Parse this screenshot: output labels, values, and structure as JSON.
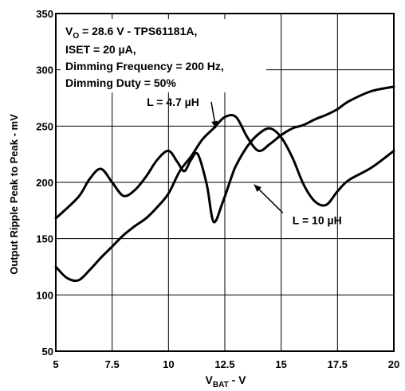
{
  "chart_data": {
    "type": "line",
    "xlabel": "V",
    "xlabel_sub": "BAT",
    "xlabel_unit": " - V",
    "ylabel": "Output Ripple Peak to Peak - mV",
    "xlim": [
      5,
      20
    ],
    "ylim": [
      50,
      350
    ],
    "xticks": [
      5,
      7.5,
      10,
      12.5,
      15,
      17.5,
      20
    ],
    "xtick_labels": [
      "5",
      "7.5",
      "10",
      "12.5",
      "15",
      "17.5",
      "20"
    ],
    "yticks": [
      50,
      100,
      150,
      200,
      250,
      300,
      350
    ],
    "ytick_labels": [
      "50",
      "100",
      "150",
      "200",
      "250",
      "300",
      "350"
    ],
    "grid": true,
    "annotation": {
      "line1_prefix": "V",
      "line1_sub": "O",
      "line1_rest": " = 28.6 V - TPS61181A,",
      "line2": "ISET = 20 µA,",
      "line3": "Dimming Frequency = 200 Hz,",
      "line4": "Dimming Duty = 50%"
    },
    "series": [
      {
        "name": "L = 4.7 µH",
        "color": "#000000",
        "x": [
          5,
          6,
          6.5,
          7,
          7.5,
          8,
          8.5,
          9,
          9.5,
          10,
          10.4,
          10.7,
          11,
          11.3,
          11.7,
          12,
          12.4,
          12.8,
          13,
          13.5,
          14,
          14.5,
          15,
          15.5,
          16,
          16.5,
          17,
          17.5,
          18,
          19,
          20
        ],
        "y": [
          168,
          187,
          203,
          212,
          200,
          188,
          193,
          205,
          220,
          228,
          218,
          210,
          220,
          225,
          198,
          165,
          182,
          205,
          215,
          232,
          243,
          248,
          240,
          222,
          198,
          183,
          180,
          192,
          202,
          213,
          228
        ]
      },
      {
        "name": "L = 10 µH",
        "color": "#000000",
        "x": [
          5,
          5.5,
          6,
          6.5,
          7,
          7.5,
          8,
          8.5,
          9,
          9.5,
          10,
          10.5,
          11,
          11.5,
          12,
          12.5,
          13,
          13.5,
          14,
          14.5,
          15,
          15.5,
          16,
          16.5,
          17,
          17.5,
          18,
          19,
          20
        ],
        "y": [
          125,
          115,
          113,
          122,
          133,
          143,
          153,
          161,
          168,
          178,
          190,
          210,
          223,
          238,
          248,
          258,
          258,
          240,
          228,
          234,
          242,
          248,
          251,
          256,
          260,
          265,
          272,
          281,
          285
        ]
      }
    ],
    "series_labels": [
      {
        "text": "L = 4.7 µH",
        "series": 1,
        "ax": 12.1,
        "ay": 248,
        "lx": 10.2,
        "ly": 268
      },
      {
        "text": "L = 10 µH",
        "series": 0,
        "ax": 13.8,
        "ay": 198,
        "lx": 15.5,
        "ly": 163
      }
    ]
  }
}
